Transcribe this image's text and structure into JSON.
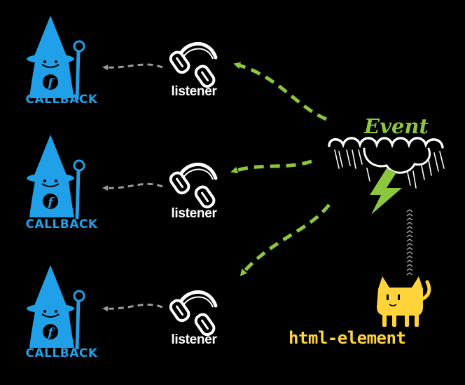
{
  "colors": {
    "callback": "#1fa0e8",
    "arrow_green": "#8dc63f",
    "arrow_gray": "#9a9a9a",
    "event_text": "#8dc63f",
    "cat": "#ffd43b",
    "bolt": "#8dc63f",
    "cloud": "#ffffff"
  },
  "callbacks": [
    {
      "label": "CALLBACK",
      "badge": "f"
    },
    {
      "label": "CALLBACK",
      "badge": "f"
    },
    {
      "label": "CALLBACK",
      "badge": "f"
    }
  ],
  "listeners": [
    {
      "label": "listener"
    },
    {
      "label": "listener"
    },
    {
      "label": "listener"
    }
  ],
  "event": {
    "label": "Event"
  },
  "source": {
    "label": "html-element"
  },
  "icons": [
    "wizard-icon",
    "headphones-icon",
    "storm-cloud-icon",
    "lightning-bolt-icon",
    "cat-icon"
  ]
}
